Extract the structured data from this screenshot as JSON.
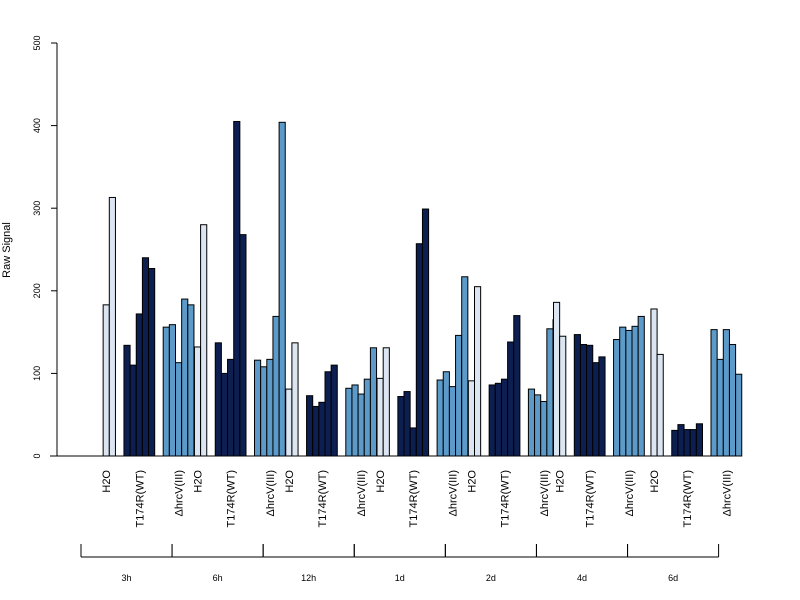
{
  "chart_data": {
    "type": "bar",
    "title": "",
    "xlabel": "",
    "ylabel": "Raw Signal",
    "ylim": [
      0,
      500
    ],
    "yticks": [
      0,
      100,
      200,
      300,
      400,
      500
    ],
    "grid": false,
    "legend": "none",
    "categories": [
      "H2O",
      "T174R(WT)",
      "ΔhrcV(III)"
    ],
    "colors": {
      "H2O": "#dce6f2",
      "T174R(WT)": "#0d1f50",
      "ΔhrcV(III)": "#5b9ac9"
    },
    "timepoints": [
      {
        "label": "3h",
        "H2O": [
          0,
          183,
          313
        ],
        "T174R(WT)": [
          134,
          110,
          172,
          240,
          227
        ],
        "ΔhrcV(III)": [
          156,
          159,
          113,
          190,
          183
        ]
      },
      {
        "label": "6h",
        "H2O": [
          0,
          132,
          280
        ],
        "T174R(WT)": [
          137,
          100,
          117,
          405,
          268
        ],
        "ΔhrcV(III)": [
          116,
          108,
          117,
          169,
          404
        ]
      },
      {
        "label": "12h",
        "H2O": [
          0,
          81,
          137
        ],
        "T174R(WT)": [
          73,
          60,
          65,
          102,
          110
        ],
        "ΔhrcV(III)": [
          82,
          86,
          75,
          93,
          131
        ]
      },
      {
        "label": "1d",
        "H2O": [
          0,
          94,
          131
        ],
        "T174R(WT)": [
          72,
          78,
          34,
          257,
          299
        ],
        "ΔhrcV(III)": [
          92,
          102,
          84,
          146,
          217
        ]
      },
      {
        "label": "2d",
        "H2O": [
          0,
          91,
          205
        ],
        "T174R(WT)": [
          86,
          88,
          93,
          138,
          170
        ],
        "ΔhrcV(III)": [
          81,
          74,
          66,
          154,
          165
        ]
      },
      {
        "label": "4d",
        "H2O": [
          186,
          145
        ],
        "T174R(WT)": [
          147,
          135,
          134,
          113,
          120
        ],
        "ΔhrcV(III)": [
          141,
          156,
          152,
          157,
          169
        ]
      },
      {
        "label": "6d",
        "H2O": [
          0,
          178,
          123
        ],
        "T174R(WT)": [
          31,
          38,
          32,
          32,
          39
        ],
        "ΔhrcV(III)": [
          153,
          117,
          153,
          135,
          99
        ]
      }
    ]
  }
}
